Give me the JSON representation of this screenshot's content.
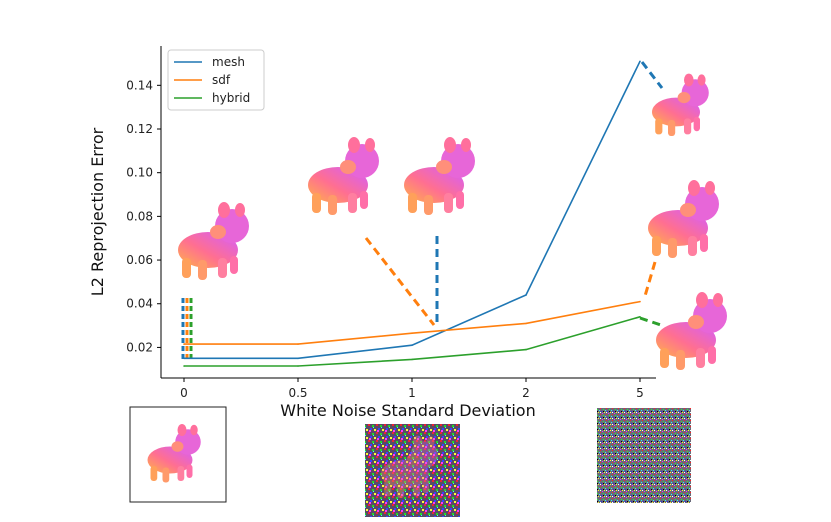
{
  "chart_data": {
    "type": "line",
    "categories": [
      "0",
      "0.5",
      "1",
      "2",
      "5"
    ],
    "series": [
      {
        "name": "mesh",
        "color": "#1f77b4",
        "values": [
          0.015,
          0.015,
          0.021,
          0.044,
          0.151
        ]
      },
      {
        "name": "sdf",
        "color": "#ff7f0e",
        "values": [
          0.0215,
          0.0215,
          0.0265,
          0.031,
          0.041
        ]
      },
      {
        "name": "hybrid",
        "color": "#2ca02c",
        "values": [
          0.0115,
          0.0115,
          0.0145,
          0.019,
          0.034
        ]
      }
    ],
    "yticks": [
      "0.02",
      "0.04",
      "0.06",
      "0.08",
      "0.10",
      "0.12",
      "0.14"
    ],
    "ylim": [
      0.006,
      0.158
    ],
    "xlabel": "White Noise Standard Deviation",
    "ylabel": "L2 Reprojection Error",
    "legend_position": "top-left",
    "annotations": [
      {
        "name": "clean-render",
        "description": "3D animal render, clean",
        "color": "#ff6f9c"
      },
      {
        "name": "noisy-render-1",
        "description": "3D animal render, noise 1",
        "color": "#f07a6a"
      },
      {
        "name": "noisy-render-5",
        "description": "3D animal render, noise 5",
        "color": "#ff8a65"
      }
    ]
  }
}
